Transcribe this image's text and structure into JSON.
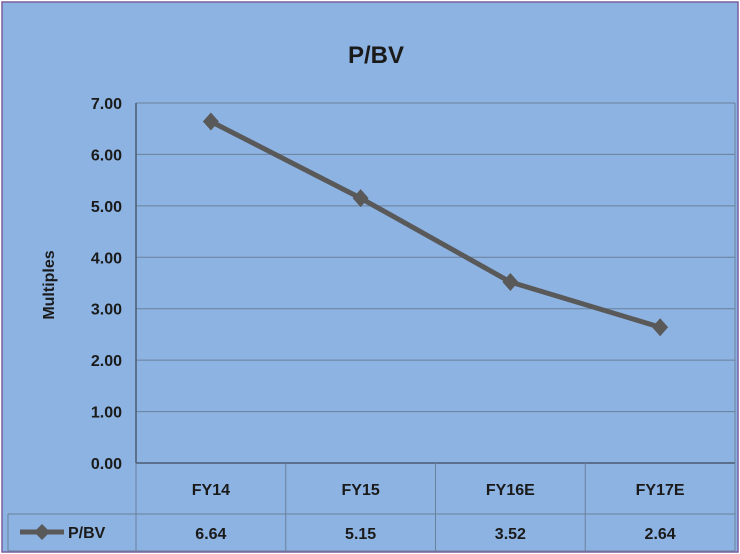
{
  "chart_data": {
    "type": "line",
    "title": "P/BV",
    "ylabel": "Multiples",
    "xlabel": "",
    "categories": [
      "FY14",
      "FY15",
      "FY16E",
      "FY17E"
    ],
    "series": [
      {
        "name": "P/BV",
        "values": [
          6.64,
          5.15,
          3.52,
          2.64
        ],
        "value_labels": [
          "6.64",
          "5.15",
          "3.52",
          "2.64"
        ]
      }
    ],
    "ylim": [
      0,
      7
    ],
    "yticks": [
      "0.00",
      "1.00",
      "2.00",
      "3.00",
      "4.00",
      "5.00",
      "6.00",
      "7.00"
    ],
    "grid": true,
    "legend": "data-table-left",
    "colors": {
      "background": "#8db3e2",
      "line": "#595959",
      "gridline": "#6a7f99"
    }
  }
}
